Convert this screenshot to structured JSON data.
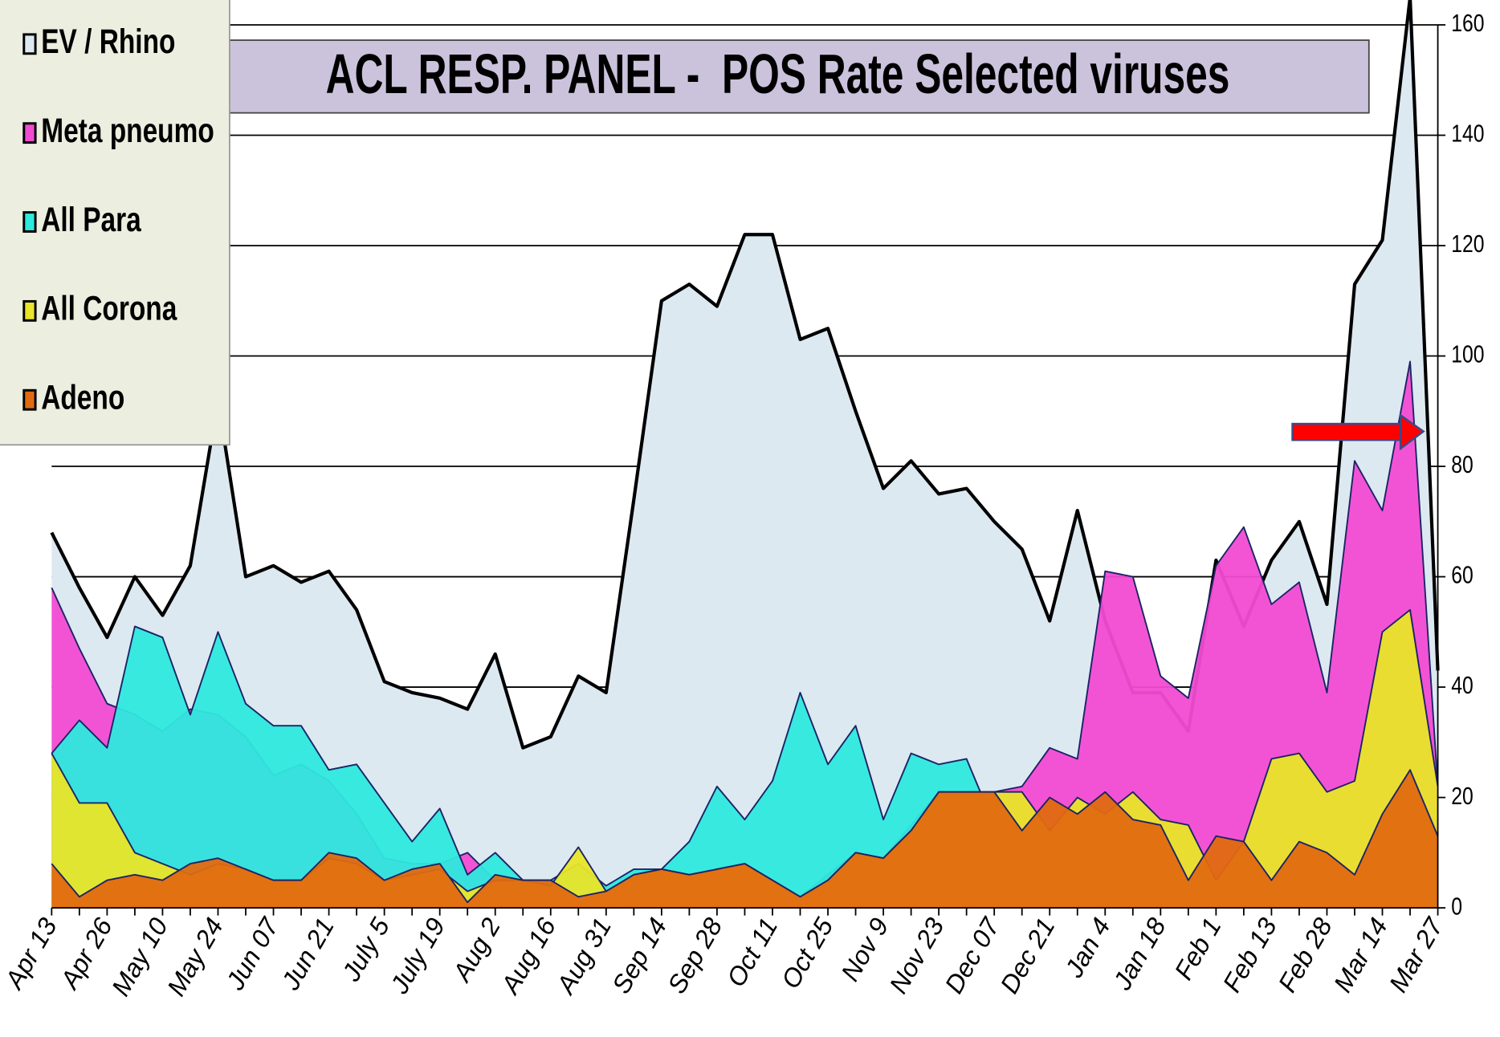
{
  "chart_data": {
    "type": "area",
    "title": "ACL RESP. PANEL -  POS Rate Selected viruses",
    "categories": [
      "Apr 13",
      null,
      "Apr 26",
      null,
      "May 10",
      null,
      "May 24",
      null,
      "Jun 07",
      null,
      "Jun 21",
      null,
      "July 5",
      null,
      "July 19",
      null,
      "Aug 2",
      null,
      "Aug 16",
      null,
      "Aug 31",
      null,
      "Sep 14",
      null,
      "Sep 28",
      null,
      "Oct 11",
      null,
      "Oct 25",
      null,
      "Nov 9",
      null,
      "Nov 23",
      null,
      "Dec 07",
      null,
      "Dec 21",
      null,
      "Jan 4",
      null,
      "Jan 18",
      null,
      "Feb 1",
      null,
      "Feb 13",
      null,
      "Feb 28",
      null,
      "Mar 14",
      null,
      "Mar 27"
    ],
    "series": [
      {
        "name": "EV / Rhino",
        "color": "#dde9f1",
        "values": [
          68,
          58,
          49,
          60,
          53,
          62,
          92,
          60,
          62,
          59,
          61,
          54,
          41,
          39,
          38,
          36,
          46,
          29,
          31,
          42,
          39,
          74,
          110,
          113,
          109,
          122,
          122,
          103,
          105,
          90,
          76,
          81,
          75,
          76,
          70,
          65,
          52,
          72,
          52,
          39,
          39,
          32,
          63,
          51,
          63,
          70,
          55,
          113,
          121,
          165,
          43
        ]
      },
      {
        "name": "Meta pneumo",
        "color": "#f24bd2",
        "values": [
          58,
          47,
          37,
          35,
          32,
          36,
          35,
          31,
          24,
          26,
          23,
          17,
          9,
          8,
          8,
          10,
          5,
          5,
          5,
          3,
          3,
          6,
          7,
          6,
          7,
          8,
          5,
          2,
          6,
          10,
          9,
          15,
          21,
          21,
          21,
          22,
          29,
          27,
          61,
          60,
          42,
          38,
          62,
          69,
          55,
          59,
          39,
          81,
          72,
          99,
          22
        ]
      },
      {
        "name": "All Para",
        "color": "#2ee9de",
        "values": [
          28,
          34,
          29,
          51,
          49,
          35,
          50,
          37,
          33,
          33,
          25,
          26,
          19,
          12,
          18,
          6,
          10,
          5,
          5,
          8,
          4,
          7,
          7,
          12,
          22,
          16,
          23,
          39,
          26,
          33,
          16,
          28,
          26,
          27,
          15,
          9,
          0,
          0,
          0,
          0,
          0,
          0,
          0,
          0,
          0,
          0,
          0,
          0,
          0,
          0,
          0
        ]
      },
      {
        "name": "All Corona",
        "color": "#e9e528",
        "values": [
          28,
          19,
          19,
          10,
          8,
          6,
          8,
          7,
          5,
          5,
          9,
          8,
          5,
          6,
          7,
          3,
          5,
          5,
          4,
          11,
          3,
          6,
          7,
          6,
          7,
          8,
          5,
          2,
          5,
          10,
          9,
          14,
          21,
          21,
          21,
          21,
          14,
          20,
          17,
          21,
          16,
          15,
          5,
          12,
          27,
          28,
          21,
          23,
          50,
          54,
          22
        ]
      },
      {
        "name": "Adeno",
        "color": "#e06a10",
        "values": [
          8,
          2,
          5,
          6,
          5,
          8,
          9,
          7,
          5,
          5,
          10,
          9,
          5,
          7,
          8,
          1,
          6,
          5,
          5,
          2,
          3,
          6,
          7,
          6,
          7,
          8,
          5,
          2,
          5,
          10,
          9,
          14,
          21,
          21,
          21,
          14,
          20,
          17,
          21,
          16,
          15,
          5,
          13,
          12,
          5,
          12,
          10,
          6,
          17,
          25,
          13
        ]
      }
    ],
    "ylim": [
      0,
      160
    ],
    "yticks": [
      0,
      20,
      40,
      60,
      80,
      100,
      120,
      140,
      160
    ],
    "grid": true,
    "legend": "top-left"
  }
}
